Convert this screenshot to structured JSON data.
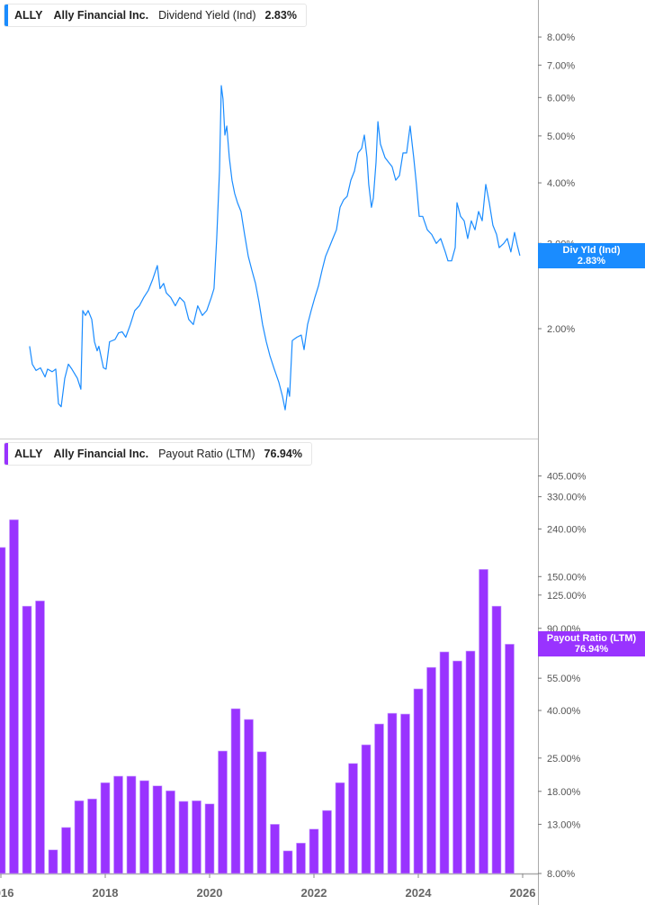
{
  "colors": {
    "yield": "#1a8cff",
    "payout": "#9933ff",
    "axis": "#aaaaaa"
  },
  "top_legend": {
    "ticker": "ALLY",
    "company": "Ally Financial Inc.",
    "metric": "Dividend Yield (Ind)",
    "value": "2.83%"
  },
  "top_tag": {
    "label": "Div Yld (Ind)",
    "value": "2.83%"
  },
  "bottom_legend": {
    "ticker": "ALLY",
    "company": "Ally Financial Inc.",
    "metric": "Payout Ratio (LTM)",
    "value": "76.94%"
  },
  "bottom_tag": {
    "label": "Payout Ratio (LTM)",
    "value": "76.94%"
  },
  "chart_data": [
    {
      "type": "line",
      "series": [
        {
          "name": "Dividend Yield (Ind)",
          "unit": "%",
          "points": [
            [
              "2016-07-20",
              1.84
            ],
            [
              "2016-08-08",
              1.69
            ],
            [
              "2016-09-03",
              1.64
            ],
            [
              "2016-10-04",
              1.66
            ],
            [
              "2016-11-05",
              1.59
            ],
            [
              "2016-11-23",
              1.65
            ],
            [
              "2016-12-25",
              1.63
            ],
            [
              "2017-01-19",
              1.65
            ],
            [
              "2017-02-07",
              1.4
            ],
            [
              "2017-02-26",
              1.38
            ],
            [
              "2017-03-23",
              1.58
            ],
            [
              "2017-04-17",
              1.69
            ],
            [
              "2017-05-12",
              1.65
            ],
            [
              "2017-06-19",
              1.58
            ],
            [
              "2017-07-14",
              1.5
            ],
            [
              "2017-07-27",
              2.18
            ],
            [
              "2017-08-15",
              2.13
            ],
            [
              "2017-09-03",
              2.18
            ],
            [
              "2017-09-28",
              2.09
            ],
            [
              "2017-10-17",
              1.88
            ],
            [
              "2017-11-05",
              1.8
            ],
            [
              "2017-11-17",
              1.84
            ],
            [
              "2017-12-19",
              1.66
            ],
            [
              "2018-01-06",
              1.65
            ],
            [
              "2018-01-31",
              1.88
            ],
            [
              "2018-03-10",
              1.9
            ],
            [
              "2018-04-04",
              1.96
            ],
            [
              "2018-04-29",
              1.97
            ],
            [
              "2018-05-24",
              1.92
            ],
            [
              "2018-06-25",
              2.04
            ],
            [
              "2018-07-26",
              2.18
            ],
            [
              "2018-08-27",
              2.23
            ],
            [
              "2018-09-27",
              2.32
            ],
            [
              "2018-10-29",
              2.4
            ],
            [
              "2018-11-29",
              2.53
            ],
            [
              "2018-12-31",
              2.7
            ],
            [
              "2019-01-19",
              2.42
            ],
            [
              "2019-02-13",
              2.48
            ],
            [
              "2019-03-04",
              2.37
            ],
            [
              "2019-04-04",
              2.32
            ],
            [
              "2019-05-06",
              2.23
            ],
            [
              "2019-06-06",
              2.32
            ],
            [
              "2019-07-08",
              2.27
            ],
            [
              "2019-08-08",
              2.09
            ],
            [
              "2019-09-09",
              2.04
            ],
            [
              "2019-10-10",
              2.23
            ],
            [
              "2019-11-11",
              2.13
            ],
            [
              "2019-12-12",
              2.18
            ],
            [
              "2020-01-13",
              2.32
            ],
            [
              "2020-02-01",
              2.42
            ],
            [
              "2020-02-20",
              3.07
            ],
            [
              "2020-03-10",
              4.23
            ],
            [
              "2020-03-23",
              6.35
            ],
            [
              "2020-04-04",
              5.96
            ],
            [
              "2020-04-17",
              5.02
            ],
            [
              "2020-04-30",
              5.24
            ],
            [
              "2020-05-18",
              4.51
            ],
            [
              "2020-06-06",
              4.05
            ],
            [
              "2020-06-25",
              3.8
            ],
            [
              "2020-07-14",
              3.64
            ],
            [
              "2020-08-08",
              3.49
            ],
            [
              "2020-09-02",
              3.13
            ],
            [
              "2020-09-28",
              2.82
            ],
            [
              "2020-10-23",
              2.64
            ],
            [
              "2020-11-17",
              2.48
            ],
            [
              "2020-12-12",
              2.27
            ],
            [
              "2021-01-06",
              2.04
            ],
            [
              "2021-02-01",
              1.88
            ],
            [
              "2021-02-26",
              1.76
            ],
            [
              "2021-03-29",
              1.65
            ],
            [
              "2021-04-30",
              1.55
            ],
            [
              "2021-05-25",
              1.45
            ],
            [
              "2021-06-13",
              1.36
            ],
            [
              "2021-07-02",
              1.51
            ],
            [
              "2021-07-14",
              1.45
            ],
            [
              "2021-08-02",
              1.89
            ],
            [
              "2021-09-03",
              1.92
            ],
            [
              "2021-10-04",
              1.94
            ],
            [
              "2021-10-23",
              1.81
            ],
            [
              "2021-11-17",
              2.04
            ],
            [
              "2021-12-12",
              2.18
            ],
            [
              "2022-01-07",
              2.32
            ],
            [
              "2022-02-01",
              2.45
            ],
            [
              "2022-02-26",
              2.64
            ],
            [
              "2022-03-23",
              2.82
            ],
            [
              "2022-04-17",
              2.94
            ],
            [
              "2022-05-13",
              3.07
            ],
            [
              "2022-06-07",
              3.2
            ],
            [
              "2022-07-02",
              3.56
            ],
            [
              "2022-07-27",
              3.69
            ],
            [
              "2022-08-21",
              3.75
            ],
            [
              "2022-09-16",
              4.05
            ],
            [
              "2022-10-11",
              4.23
            ],
            [
              "2022-11-05",
              4.61
            ],
            [
              "2022-11-30",
              4.71
            ],
            [
              "2022-12-19",
              5.02
            ],
            [
              "2023-01-07",
              4.51
            ],
            [
              "2023-01-19",
              3.97
            ],
            [
              "2023-02-07",
              3.56
            ],
            [
              "2023-02-20",
              3.72
            ],
            [
              "2023-03-11",
              4.41
            ],
            [
              "2023-03-24",
              5.35
            ],
            [
              "2023-04-11",
              4.81
            ],
            [
              "2023-05-13",
              4.51
            ],
            [
              "2023-06-07",
              4.41
            ],
            [
              "2023-07-02",
              4.32
            ],
            [
              "2023-07-27",
              4.05
            ],
            [
              "2023-08-22",
              4.14
            ],
            [
              "2023-09-16",
              4.61
            ],
            [
              "2023-10-11",
              4.61
            ],
            [
              "2023-11-05",
              5.24
            ],
            [
              "2023-11-30",
              4.51
            ],
            [
              "2023-12-19",
              3.97
            ],
            [
              "2024-01-07",
              3.41
            ],
            [
              "2024-02-01",
              3.41
            ],
            [
              "2024-03-04",
              3.2
            ],
            [
              "2024-04-04",
              3.13
            ],
            [
              "2024-05-06",
              3.0
            ],
            [
              "2024-06-06",
              3.07
            ],
            [
              "2024-07-08",
              2.88
            ],
            [
              "2024-07-27",
              2.76
            ],
            [
              "2024-08-21",
              2.76
            ],
            [
              "2024-09-15",
              2.94
            ],
            [
              "2024-09-28",
              3.64
            ],
            [
              "2024-10-23",
              3.41
            ],
            [
              "2024-11-17",
              3.34
            ],
            [
              "2024-12-12",
              3.07
            ],
            [
              "2025-01-06",
              3.34
            ],
            [
              "2025-02-01",
              3.2
            ],
            [
              "2025-02-26",
              3.49
            ],
            [
              "2025-03-23",
              3.34
            ],
            [
              "2025-04-17",
              3.97
            ],
            [
              "2025-05-12",
              3.64
            ],
            [
              "2025-06-06",
              3.27
            ],
            [
              "2025-07-02",
              3.13
            ],
            [
              "2025-07-20",
              2.94
            ],
            [
              "2025-08-21",
              3.0
            ],
            [
              "2025-09-15",
              3.07
            ],
            [
              "2025-10-10",
              2.88
            ],
            [
              "2025-11-05",
              3.16
            ],
            [
              "2025-11-23",
              2.98
            ],
            [
              "2025-12-12",
              2.83
            ]
          ]
        }
      ],
      "yscale": "log",
      "ylim": [
        1.3,
        9.2
      ],
      "yticks": [
        {
          "v": 2,
          "label": "2.00%"
        },
        {
          "v": 3,
          "label": "3.00%"
        },
        {
          "v": 4,
          "label": "4.00%"
        },
        {
          "v": 5,
          "label": "5.00%"
        },
        {
          "v": 6,
          "label": "6.00%"
        },
        {
          "v": 7,
          "label": "7.00%"
        },
        {
          "v": 8,
          "label": "8.00%"
        }
      ],
      "grid": false
    },
    {
      "type": "bar",
      "series": [
        {
          "name": "Payout Ratio (LTM)",
          "unit": "%"
        }
      ],
      "categories": [
        "2016 Q1",
        "2016 Q2",
        "2016 Q3",
        "2016 Q4",
        "2017 Q1",
        "2017 Q2",
        "2017 Q3",
        "2017 Q4",
        "2018 Q1",
        "2018 Q2",
        "2018 Q3",
        "2018 Q4",
        "2019 Q1",
        "2019 Q2",
        "2019 Q3",
        "2019 Q4",
        "2020 Q1",
        "2020 Q2",
        "2020 Q3",
        "2020 Q4",
        "2021 Q1",
        "2021 Q2",
        "2021 Q3",
        "2021 Q4",
        "2022 Q1",
        "2022 Q2",
        "2022 Q3",
        "2022 Q4",
        "2023 Q1",
        "2023 Q2",
        "2023 Q3",
        "2023 Q4",
        "2024 Q1",
        "2024 Q2",
        "2024 Q3",
        "2024 Q4",
        "2025 Q1",
        "2025 Q2",
        "2025 Q3",
        "2025 Q4"
      ],
      "values": [
        200,
        263,
        112,
        118,
        10.1,
        12.6,
        16.4,
        16.7,
        19.6,
        20.9,
        20.9,
        20.0,
        19.0,
        18.1,
        16.3,
        16.4,
        15.9,
        26.8,
        40.7,
        36.6,
        26.6,
        13.0,
        10.0,
        10.8,
        12.4,
        14.9,
        19.6,
        23.7,
        28.5,
        35.0,
        38.9,
        38.6,
        49.5,
        61.2,
        71.3,
        65.2,
        71.9,
        161,
        112,
        76.94
      ],
      "yscale": "log",
      "ylim": [
        8,
        500
      ],
      "yticks": [
        {
          "v": 8,
          "label": "8.00%"
        },
        {
          "v": 13,
          "label": "13.00%"
        },
        {
          "v": 18,
          "label": "18.00%"
        },
        {
          "v": 25,
          "label": "25.00%"
        },
        {
          "v": 40,
          "label": "40.00%"
        },
        {
          "v": 55,
          "label": "55.00%"
        },
        {
          "v": 90,
          "label": "90.00%"
        },
        {
          "v": 125,
          "label": "125.00%"
        },
        {
          "v": 150,
          "label": "150.00%"
        },
        {
          "v": 240,
          "label": "240.00%"
        },
        {
          "v": 330,
          "label": "330.00%"
        },
        {
          "v": 405,
          "label": "405.00%"
        }
      ],
      "xticks": [
        "2016",
        "2018",
        "2020",
        "2022",
        "2024",
        "2026"
      ],
      "grid": false
    }
  ]
}
